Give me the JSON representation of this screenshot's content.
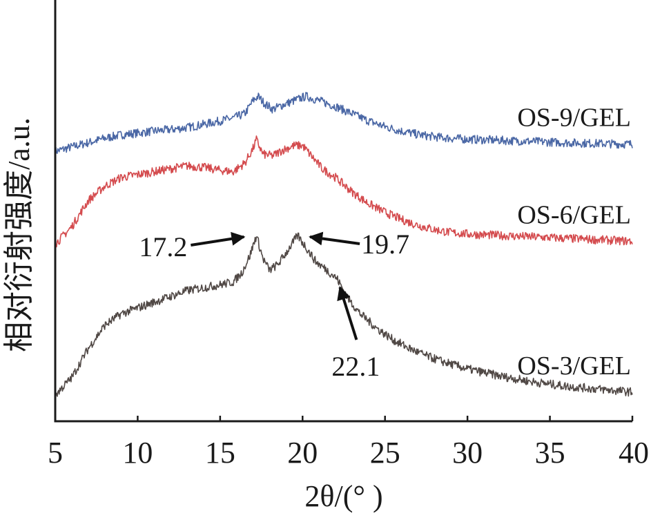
{
  "chart_data": {
    "type": "line",
    "title": "",
    "xlabel": "2θ/(° )",
    "ylabel": "相对衍射强度/a.u.",
    "xlim": [
      5,
      40
    ],
    "xticks": [
      5,
      10,
      15,
      20,
      25,
      30,
      35,
      40
    ],
    "yticks": [],
    "grid": false,
    "legend": "none",
    "series": [
      {
        "name": "OS-9/GEL",
        "color": "#4a67a5",
        "offset": 0.84,
        "x": [
          5,
          6,
          7,
          8,
          9,
          10,
          11,
          12,
          13,
          14,
          15,
          15.8,
          16.5,
          17.0,
          17.3,
          17.7,
          18.2,
          18.8,
          19.5,
          20.2,
          21.0,
          22,
          23,
          24,
          25,
          26,
          27,
          28,
          29,
          30,
          32,
          34,
          36,
          38,
          40
        ],
        "y": [
          0,
          0.015,
          0.03,
          0.045,
          0.057,
          0.063,
          0.07,
          0.075,
          0.082,
          0.093,
          0.105,
          0.115,
          0.13,
          0.175,
          0.19,
          0.165,
          0.145,
          0.16,
          0.175,
          0.19,
          0.175,
          0.155,
          0.13,
          0.105,
          0.085,
          0.07,
          0.058,
          0.05,
          0.045,
          0.042,
          0.038,
          0.034,
          0.03,
          0.027,
          0.025
        ]
      },
      {
        "name": "OS-6/GEL",
        "color": "#d44b4e",
        "offset": 0.52,
        "x": [
          5,
          6,
          7,
          8,
          9,
          10,
          11,
          12,
          13,
          14,
          15,
          15.8,
          16.5,
          17.0,
          17.2,
          17.6,
          18.2,
          18.8,
          19.5,
          20.0,
          20.6,
          21.2,
          22,
          23,
          24,
          25,
          26,
          27,
          28,
          29,
          30,
          32,
          34,
          36,
          38,
          40
        ],
        "y": [
          0,
          0.06,
          0.15,
          0.2,
          0.23,
          0.24,
          0.25,
          0.26,
          0.27,
          0.265,
          0.255,
          0.25,
          0.28,
          0.33,
          0.36,
          0.31,
          0.305,
          0.325,
          0.34,
          0.34,
          0.3,
          0.26,
          0.23,
          0.18,
          0.14,
          0.11,
          0.085,
          0.065,
          0.05,
          0.04,
          0.035,
          0.03,
          0.025,
          0.02,
          0.015,
          0.01
        ]
      },
      {
        "name": "OS-3/GEL",
        "color": "#504845",
        "offset": 0,
        "x": [
          5,
          6,
          7,
          8,
          9,
          10,
          11,
          12,
          13,
          14,
          15,
          15.8,
          16.3,
          16.8,
          17.2,
          17.6,
          18.0,
          18.5,
          19.0,
          19.7,
          20.2,
          20.8,
          21.5,
          22.1,
          22.8,
          23.5,
          24.5,
          25.5,
          26.5,
          27.5,
          28.5,
          30,
          32,
          34,
          36,
          38,
          40
        ],
        "y": [
          0,
          0.06,
          0.16,
          0.24,
          0.28,
          0.3,
          0.32,
          0.34,
          0.36,
          0.37,
          0.38,
          0.39,
          0.42,
          0.48,
          0.55,
          0.47,
          0.43,
          0.45,
          0.49,
          0.55,
          0.51,
          0.46,
          0.43,
          0.4,
          0.33,
          0.28,
          0.23,
          0.19,
          0.16,
          0.135,
          0.115,
          0.09,
          0.065,
          0.045,
          0.03,
          0.02,
          0.01
        ]
      }
    ],
    "annotations": [
      {
        "label": "17.2",
        "x": 17.2,
        "series": "OS-3/GEL"
      },
      {
        "label": "19.7",
        "x": 19.7,
        "series": "OS-3/GEL"
      },
      {
        "label": "22.1",
        "x": 22.1,
        "series": "OS-3/GEL"
      }
    ]
  }
}
